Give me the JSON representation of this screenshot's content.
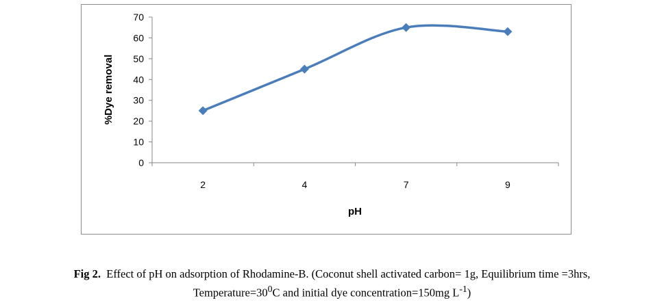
{
  "chart_data": {
    "type": "line",
    "categories": [
      "2",
      "4",
      "7",
      "9"
    ],
    "series": [
      {
        "values": [
          25,
          45,
          65,
          63
        ],
        "color": "#4a7ebb",
        "marker": "diamond"
      }
    ],
    "xlabel": "pH",
    "ylabel": "%Dye removal",
    "ylim": [
      0,
      70
    ],
    "yticks": [
      0,
      10,
      20,
      30,
      40,
      50,
      60,
      70
    ],
    "grid": false,
    "smoothed": true
  },
  "caption": {
    "label": "Fig 2.",
    "line1": "Effect of pH  on adsorption of Rhodamine-B. (Coconut shell activated carbon= 1g, Equilibrium time =3hrs,",
    "line2_a": "Temperature=30",
    "line2_sup1": "0",
    "line2_b": "C and initial dye concentration=150mg L",
    "line2_sup2": "-1",
    "line2_c": ")"
  }
}
